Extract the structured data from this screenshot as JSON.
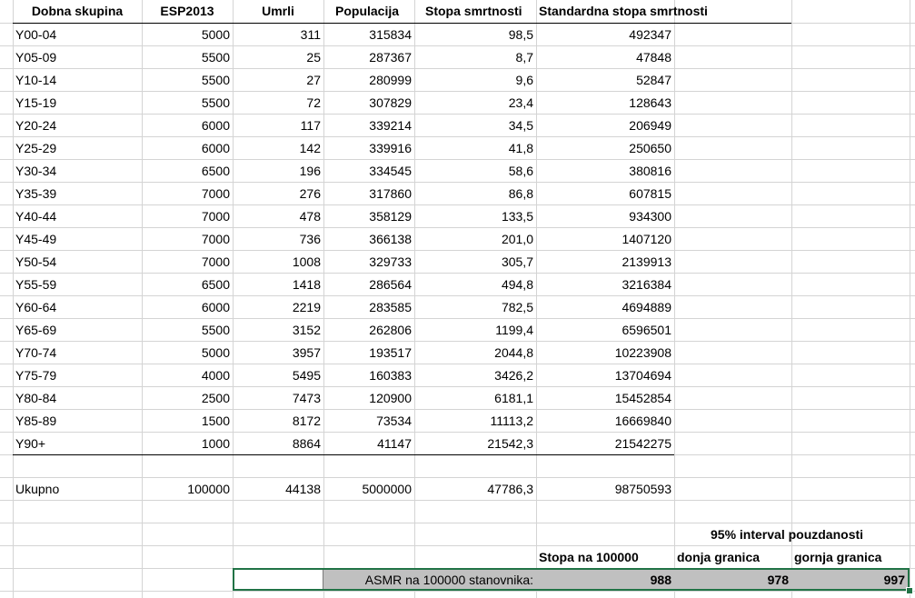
{
  "headers": [
    "Dobna skupina",
    "ESP2013",
    "Umrli",
    "Populacija",
    "Stopa smrtnosti",
    "Standardna stopa smrtnosti"
  ],
  "rows": [
    [
      "Y00-04",
      "5000",
      "311",
      "315834",
      "98,5",
      "492347"
    ],
    [
      "Y05-09",
      "5500",
      "25",
      "287367",
      "8,7",
      "47848"
    ],
    [
      "Y10-14",
      "5500",
      "27",
      "280999",
      "9,6",
      "52847"
    ],
    [
      "Y15-19",
      "5500",
      "72",
      "307829",
      "23,4",
      "128643"
    ],
    [
      "Y20-24",
      "6000",
      "117",
      "339214",
      "34,5",
      "206949"
    ],
    [
      "Y25-29",
      "6000",
      "142",
      "339916",
      "41,8",
      "250650"
    ],
    [
      "Y30-34",
      "6500",
      "196",
      "334545",
      "58,6",
      "380816"
    ],
    [
      "Y35-39",
      "7000",
      "276",
      "317860",
      "86,8",
      "607815"
    ],
    [
      "Y40-44",
      "7000",
      "478",
      "358129",
      "133,5",
      "934300"
    ],
    [
      "Y45-49",
      "7000",
      "736",
      "366138",
      "201,0",
      "1407120"
    ],
    [
      "Y50-54",
      "7000",
      "1008",
      "329733",
      "305,7",
      "2139913"
    ],
    [
      "Y55-59",
      "6500",
      "1418",
      "286564",
      "494,8",
      "3216384"
    ],
    [
      "Y60-64",
      "6000",
      "2219",
      "283585",
      "782,5",
      "4694889"
    ],
    [
      "Y65-69",
      "5500",
      "3152",
      "262806",
      "1199,4",
      "6596501"
    ],
    [
      "Y70-74",
      "5000",
      "3957",
      "193517",
      "2044,8",
      "10223908"
    ],
    [
      "Y75-79",
      "4000",
      "5495",
      "160383",
      "3426,2",
      "13704694"
    ],
    [
      "Y80-84",
      "2500",
      "7473",
      "120900",
      "6181,1",
      "15452854"
    ],
    [
      "Y85-89",
      "1500",
      "8172",
      "73534",
      "11113,2",
      "16669840"
    ],
    [
      "Y90+",
      "1000",
      "8864",
      "41147",
      "21542,3",
      "21542275"
    ]
  ],
  "total": [
    "Ukupno",
    "100000",
    "44138",
    "5000000",
    "47786,3",
    "98750593"
  ],
  "ci": {
    "title": "95% interval pouzdanosti",
    "rate_header": "Stopa na 100000",
    "lower_header": "donja granica",
    "upper_header": "gornja granica",
    "asmr_label": "ASMR na 100000 stanovnika:",
    "asmr_value": "988",
    "lower_value": "978",
    "upper_value": "997"
  },
  "colors": {
    "selection_border": "#217346",
    "shaded_fill": "#c0c0c0",
    "gridline": "#d4d4d4"
  }
}
